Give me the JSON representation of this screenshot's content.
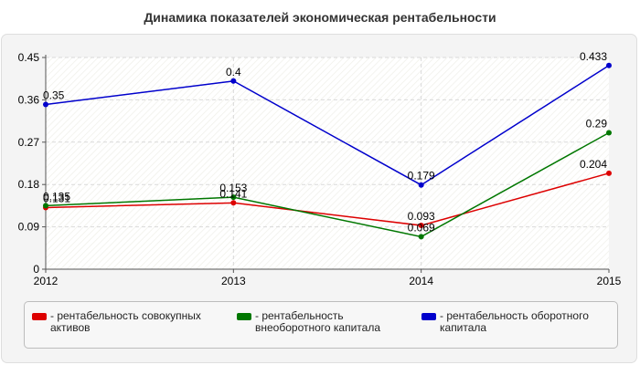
{
  "chart_data": {
    "type": "line",
    "title": "Динамика показателей экономическая рентабельности",
    "x": [
      "2012",
      "2013",
      "2014",
      "2015"
    ],
    "ylim": [
      0,
      0.45
    ],
    "yticks": [
      "0",
      "0.09",
      "0.18",
      "0.27",
      "0.36",
      "0.45"
    ],
    "grid": true,
    "legend_position": "bottom",
    "series": [
      {
        "name": "- рентабельность совокупных активов",
        "color": "#dd0000",
        "values": [
          0.131,
          0.141,
          0.093,
          0.204
        ],
        "labels": [
          "0.131",
          "0.141",
          "0.093",
          "0.204"
        ]
      },
      {
        "name": "- рентабельность внеоборотного капитала",
        "color": "#007700",
        "values": [
          0.135,
          0.153,
          0.069,
          0.29
        ],
        "labels": [
          "0.135",
          "0.153",
          "0.069",
          "0.29"
        ]
      },
      {
        "name": "- рентабельность оборотного капитала",
        "color": "#0000cc",
        "values": [
          0.35,
          0.4,
          0.179,
          0.433
        ],
        "labels": [
          "0.35",
          "0.4",
          "0.179",
          "0.433"
        ]
      }
    ]
  }
}
